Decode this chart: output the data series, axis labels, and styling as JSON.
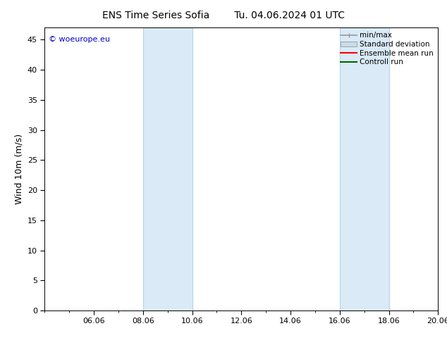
{
  "title_left": "ENS Time Series Sofia",
  "title_right": "Tu. 04.06.2024 01 UTC",
  "ylabel": "Wind 10m (m/s)",
  "ylim": [
    0,
    47
  ],
  "yticks": [
    0,
    5,
    10,
    15,
    20,
    25,
    30,
    35,
    40,
    45
  ],
  "xlim": [
    0,
    16
  ],
  "xtick_labels": [
    "06.06",
    "08.06",
    "10.06",
    "12.06",
    "14.06",
    "16.06",
    "18.06",
    "20.06"
  ],
  "xtick_positions": [
    2,
    4,
    6,
    8,
    10,
    12,
    14,
    16
  ],
  "shaded_regions": [
    {
      "start": 4,
      "end": 6
    },
    {
      "start": 12,
      "end": 14
    }
  ],
  "shaded_facecolor": "#daeaf7",
  "shaded_edgecolor": "#b8d4e8",
  "background_color": "#ffffff",
  "watermark_text": "© woeurope.eu",
  "watermark_color": "#0000cc",
  "legend_labels": [
    "min/max",
    "Standard deviation",
    "Ensemble mean run",
    "Controll run"
  ],
  "legend_line_colors": [
    "#999999",
    "#c8dcea",
    "#ff0000",
    "#006600"
  ],
  "title_fontsize": 10,
  "ylabel_fontsize": 9,
  "tick_fontsize": 8,
  "legend_fontsize": 7.5,
  "watermark_fontsize": 8
}
